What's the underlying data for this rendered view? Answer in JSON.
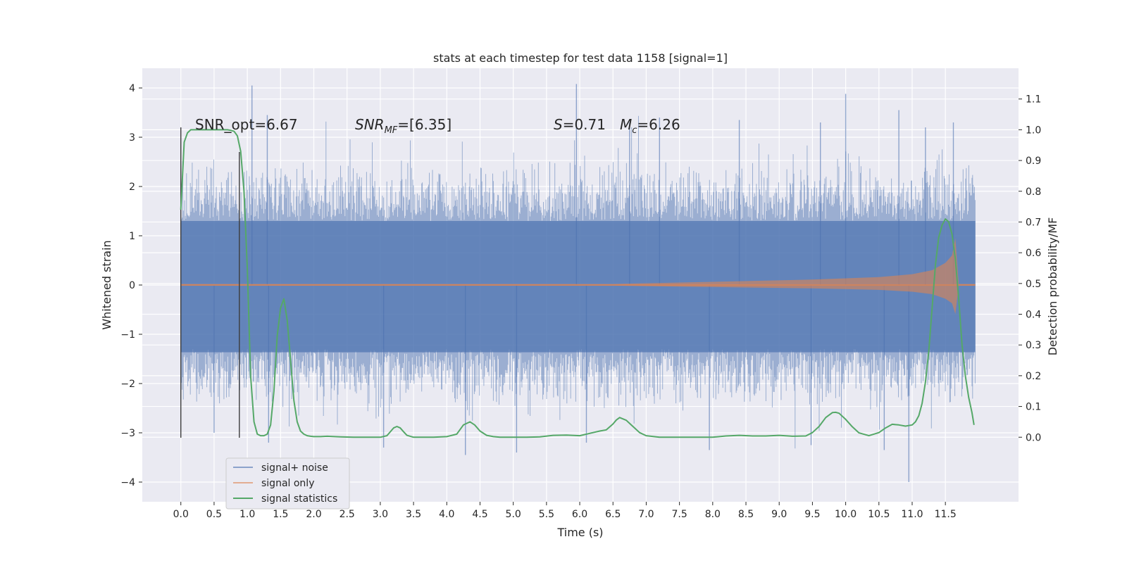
{
  "chart_data": {
    "type": "line",
    "title": "stats at each timestep for test data 1158 [signal=1]",
    "xlabel": "Time (s)",
    "ylabel": "Whitened strain",
    "ylabel_right": "Detection probability/MF",
    "xlim": [
      -0.58,
      12.6
    ],
    "ylim": [
      -4.4,
      4.4
    ],
    "ylim_right": [
      -0.21,
      1.2
    ],
    "x_ticks": [
      "0.0",
      "0.5",
      "1.0",
      "1.5",
      "2.0",
      "2.5",
      "3.0",
      "3.5",
      "4.0",
      "4.5",
      "5.0",
      "5.5",
      "6.0",
      "6.5",
      "7.0",
      "7.5",
      "8.0",
      "8.5",
      "9.0",
      "9.5",
      "10.0",
      "10.5",
      "11.0",
      "11.5"
    ],
    "y_ticks": [
      "4",
      "3",
      "2",
      "1",
      "0",
      "−1",
      "−2",
      "−3",
      "−4"
    ],
    "y_ticks_right": [
      "1.1",
      "1.0",
      "0.9",
      "0.8",
      "0.7",
      "0.6",
      "0.5",
      "0.4",
      "0.3",
      "0.2",
      "0.1",
      "0.0"
    ],
    "grid": true,
    "legend_position": "lower-left",
    "annotations": {
      "snr_opt": "SNR_opt=6.67",
      "snr_mf_main": "SNR",
      "snr_mf_sub": "MF",
      "snr_mf_value": "=[6.35]",
      "s_label": "S",
      "s_value": "=0.71",
      "mc_main": "M",
      "mc_sub": "c",
      "mc_value": "=6.26"
    },
    "vlines": [
      {
        "x": 0.0,
        "y": [
          -3.1,
          3.2
        ]
      },
      {
        "x": 0.88,
        "y": [
          -3.1,
          2.7
        ]
      }
    ],
    "series": [
      {
        "name": "signal+ noise",
        "color": "#4c72b0",
        "opacity": 0.5,
        "axis": "left",
        "x_range": [
          0.0,
          11.95
        ],
        "band_typical": [
          -2.1,
          2.0
        ],
        "noise_envelope": [
          -2.1,
          2.0
        ],
        "peaks": [
          {
            "x": 1.07,
            "y": 4.05
          },
          {
            "x": 5.95,
            "y": 4.08
          },
          {
            "x": 10.0,
            "y": 3.88
          },
          {
            "x": 10.95,
            "y": -4.0
          },
          {
            "x": 4.28,
            "y": -3.45
          },
          {
            "x": 5.05,
            "y": -3.4
          },
          {
            "x": 1.3,
            "y": 3.45
          },
          {
            "x": 8.4,
            "y": 3.35
          },
          {
            "x": 10.8,
            "y": 3.55
          },
          {
            "x": 11.2,
            "y": 3.2
          },
          {
            "x": 11.62,
            "y": 3.3
          },
          {
            "x": 1.32,
            "y": -3.2
          },
          {
            "x": 7.95,
            "y": -3.35
          },
          {
            "x": 6.1,
            "y": -3.2
          },
          {
            "x": 10.58,
            "y": -3.35
          },
          {
            "x": 9.48,
            "y": -3.25
          },
          {
            "x": 3.05,
            "y": -3.3
          },
          {
            "x": 0.5,
            "y": -3.0
          },
          {
            "x": 7.2,
            "y": 3.4
          },
          {
            "x": 6.75,
            "y": 3.3
          },
          {
            "x": 9.62,
            "y": 3.3
          }
        ]
      },
      {
        "name": "signal only",
        "color": "#dd8452",
        "opacity": 0.6,
        "axis": "left",
        "envelope_x": [
          0.0,
          6.5,
          7.5,
          8.5,
          9.5,
          10.5,
          11.0,
          11.3,
          11.5,
          11.6,
          11.65,
          11.7,
          11.95
        ],
        "envelope_amp": [
          0.02,
          0.02,
          0.05,
          0.08,
          0.11,
          0.16,
          0.22,
          0.3,
          0.45,
          0.6,
          0.95,
          0.02,
          0.02
        ]
      },
      {
        "name": "signal statistics",
        "color": "#55a868",
        "axis": "right",
        "x": [
          0.0,
          0.05,
          0.1,
          0.15,
          0.2,
          0.3,
          0.4,
          0.5,
          0.6,
          0.7,
          0.75,
          0.8,
          0.85,
          0.9,
          0.95,
          1.0,
          1.05,
          1.1,
          1.15,
          1.2,
          1.25,
          1.3,
          1.35,
          1.4,
          1.45,
          1.5,
          1.55,
          1.6,
          1.65,
          1.7,
          1.75,
          1.8,
          1.85,
          1.9,
          1.95,
          2.0,
          2.1,
          2.2,
          2.4,
          2.6,
          2.8,
          3.0,
          3.1,
          3.2,
          3.25,
          3.3,
          3.35,
          3.4,
          3.5,
          3.6,
          3.8,
          4.0,
          4.15,
          4.25,
          4.35,
          4.42,
          4.5,
          4.6,
          4.7,
          4.8,
          5.0,
          5.2,
          5.4,
          5.6,
          5.8,
          6.0,
          6.2,
          6.3,
          6.4,
          6.5,
          6.55,
          6.6,
          6.7,
          6.8,
          6.9,
          7.0,
          7.2,
          7.5,
          7.8,
          8.0,
          8.2,
          8.4,
          8.6,
          8.8,
          9.0,
          9.2,
          9.4,
          9.5,
          9.6,
          9.7,
          9.8,
          9.85,
          9.9,
          10.0,
          10.1,
          10.2,
          10.35,
          10.5,
          10.6,
          10.7,
          10.8,
          10.9,
          11.0,
          11.05,
          11.1,
          11.15,
          11.2,
          11.25,
          11.3,
          11.35,
          11.4,
          11.45,
          11.5,
          11.55,
          11.6,
          11.65,
          11.7,
          11.75,
          11.8,
          11.85,
          11.9,
          11.93
        ],
        "y": [
          0.74,
          0.96,
          0.99,
          1.0,
          1.0,
          1.0,
          1.0,
          1.0,
          1.0,
          1.0,
          0.998,
          0.995,
          0.98,
          0.93,
          0.8,
          0.55,
          0.2,
          0.05,
          0.01,
          0.005,
          0.005,
          0.01,
          0.04,
          0.15,
          0.33,
          0.42,
          0.45,
          0.38,
          0.25,
          0.12,
          0.05,
          0.02,
          0.01,
          0.005,
          0.003,
          0.002,
          0.002,
          0.003,
          0.001,
          0.0,
          0.0,
          0.0,
          0.005,
          0.03,
          0.035,
          0.03,
          0.018,
          0.006,
          0.0,
          0.0,
          0.0,
          0.002,
          0.01,
          0.04,
          0.05,
          0.04,
          0.02,
          0.006,
          0.002,
          0.0,
          0.0,
          0.0,
          0.001,
          0.006,
          0.007,
          0.005,
          0.015,
          0.02,
          0.024,
          0.043,
          0.056,
          0.064,
          0.055,
          0.035,
          0.015,
          0.005,
          0.0,
          0.0,
          0.0,
          0.0,
          0.004,
          0.006,
          0.004,
          0.004,
          0.006,
          0.003,
          0.004,
          0.015,
          0.035,
          0.064,
          0.08,
          0.081,
          0.078,
          0.058,
          0.034,
          0.014,
          0.005,
          0.015,
          0.03,
          0.042,
          0.04,
          0.036,
          0.04,
          0.05,
          0.07,
          0.11,
          0.18,
          0.28,
          0.42,
          0.56,
          0.65,
          0.69,
          0.71,
          0.7,
          0.66,
          0.58,
          0.45,
          0.3,
          0.2,
          0.13,
          0.08,
          0.04
        ]
      }
    ]
  }
}
